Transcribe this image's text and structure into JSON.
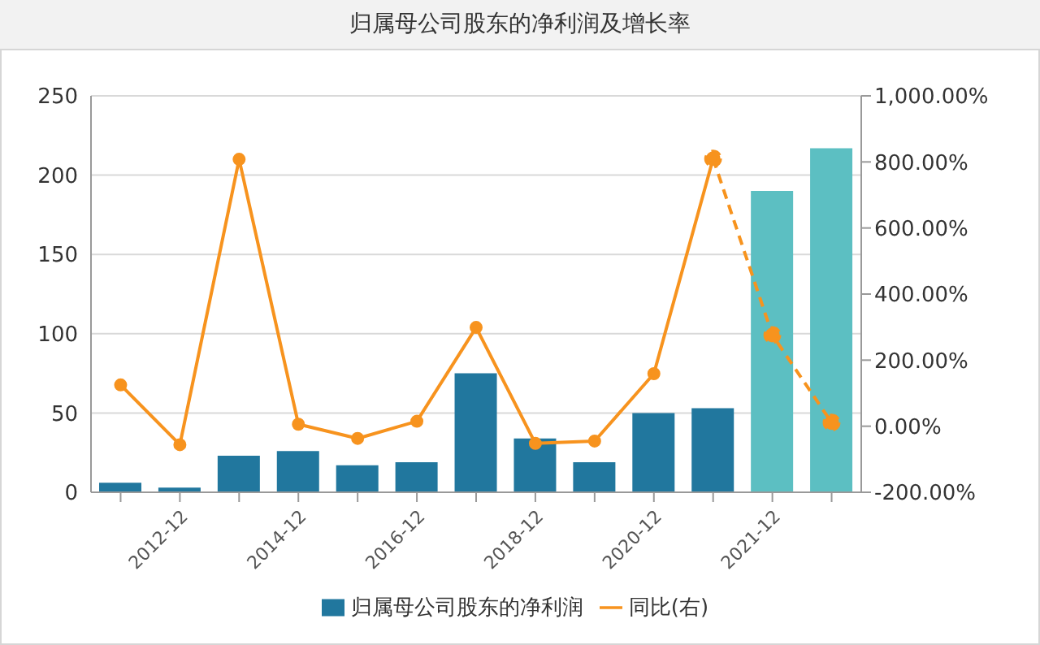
{
  "chart_data": {
    "type": "bar",
    "title": "归属母公司股东的净利润及增长率",
    "categories": [
      null,
      "2012-12",
      null,
      "2014-12",
      null,
      "2016-12",
      null,
      "2018-12",
      null,
      "2020-12",
      null,
      "2021-12",
      null
    ],
    "series": [
      {
        "name": "归属母公司股东的净利润",
        "color": "#21779e",
        "colors": [
          "#21779e",
          "#21779e",
          "#21779e",
          "#21779e",
          "#21779e",
          "#21779e",
          "#21779e",
          "#21779e",
          "#21779e",
          "#21779e",
          "#21779e",
          "#5cbfc2",
          "#5cbfc2"
        ],
        "values": [
          6,
          3,
          23,
          26,
          17,
          19,
          75,
          34,
          19,
          50,
          53,
          190,
          217
        ]
      },
      {
        "name": "同比(右)",
        "type": "line",
        "axis": "y2",
        "color": "#f7931e",
        "marker": "circle",
        "line_style": "solid",
        "values": [
          125,
          -56,
          808,
          6,
          -37,
          15,
          299,
          -52,
          -45,
          159,
          810,
          null,
          null
        ]
      },
      {
        "type": "line",
        "axis": "y2",
        "color": "#f7931e",
        "marker": "circle",
        "line_style": "dashed",
        "values": [
          null,
          null,
          null,
          null,
          null,
          null,
          null,
          null,
          null,
          null,
          810,
          276,
          11
        ]
      }
    ],
    "ylim": [
      0,
      250
    ],
    "yticks": [
      0,
      50,
      100,
      150,
      200,
      250
    ],
    "y2lim": [
      -200,
      1000
    ],
    "y2ticks": [
      {
        "value": -200,
        "label": "-200.00%"
      },
      {
        "value": 0,
        "label": "0.00%"
      },
      {
        "value": 200,
        "label": "200.00%"
      },
      {
        "value": 400,
        "label": "400.00%"
      },
      {
        "value": 600,
        "label": "600.00%"
      },
      {
        "value": 800,
        "label": "800.00%"
      },
      {
        "value": 1000,
        "label": "1,000.00%"
      }
    ],
    "grid": "y",
    "legend": "bottom"
  }
}
